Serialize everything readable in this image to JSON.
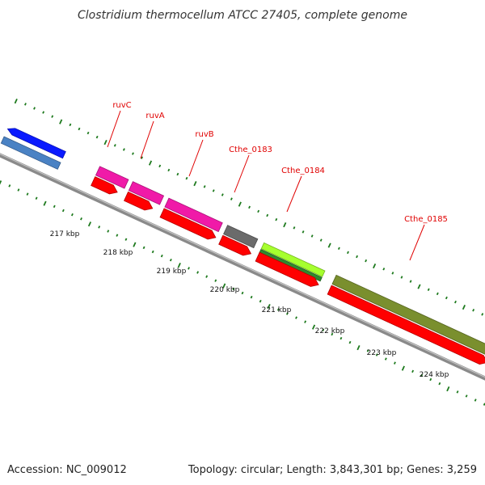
{
  "title": "Clostridium thermocellum ATCC 27405, complete genome",
  "accession_text": "Accession: NC_009012",
  "summary_text": "Topology: circular; Length: 3,843,301 bp; Genes: 3,259",
  "ticks": [
    {
      "label": "217 kbp"
    },
    {
      "label": "218 kbp"
    },
    {
      "label": "219 kbp"
    },
    {
      "label": "220 kbp"
    },
    {
      "label": "221 kbp"
    },
    {
      "label": "222 kbp"
    },
    {
      "label": "223 kbp"
    },
    {
      "label": "224 kbp"
    }
  ],
  "genes": [
    {
      "name": "ruvC"
    },
    {
      "name": "ruvA"
    },
    {
      "name": "ruvB"
    },
    {
      "name": "Cthe_0183"
    },
    {
      "name": "Cthe_0184"
    },
    {
      "name": "Cthe_0185"
    }
  ],
  "colors": {
    "backbone": "#8a8a8a",
    "cds_red": "#ff0000",
    "pink": "#f01aa8",
    "grey_feature": "#6b6b6b",
    "lime": "#a6ff2e",
    "green": "#2e8a2e",
    "olive": "#7a8f2e",
    "blue": "#0a1aff",
    "steel": "#4a82c4",
    "gc_dots": "#1e7a1e",
    "label_red": "#e00000"
  }
}
